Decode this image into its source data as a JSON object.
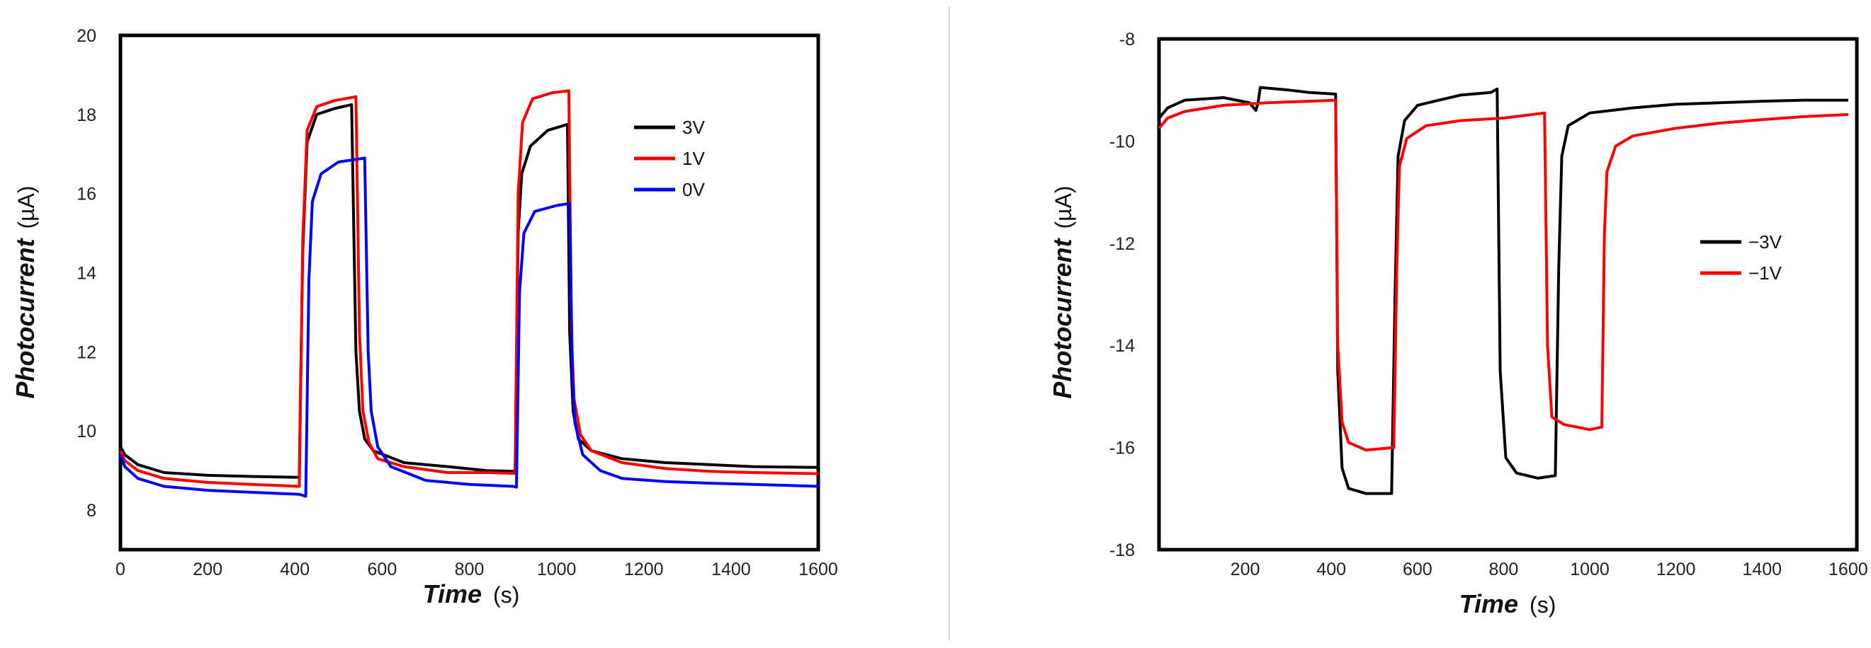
{
  "chart_data": [
    {
      "type": "line",
      "xlabel": "Time",
      "xlabel_unit": "(s)",
      "ylabel": "Photocurrent",
      "ylabel_unit": "(µA)",
      "xlim": [
        0,
        1600
      ],
      "ylim": [
        7,
        20
      ],
      "xticks": [
        0,
        200,
        400,
        600,
        800,
        1000,
        1200,
        1400,
        1600
      ],
      "yticks": [
        8,
        10,
        12,
        14,
        16,
        18,
        20
      ],
      "legend_position": "top-right",
      "series": [
        {
          "name": "3V",
          "color": "#000000",
          "points": [
            [
              0,
              9.6
            ],
            [
              10,
              9.4
            ],
            [
              40,
              9.15
            ],
            [
              100,
              8.95
            ],
            [
              200,
              8.88
            ],
            [
              300,
              8.85
            ],
            [
              410,
              8.83
            ],
            [
              418,
              14.5
            ],
            [
              428,
              17.3
            ],
            [
              450,
              18.0
            ],
            [
              490,
              18.15
            ],
            [
              530,
              18.25
            ],
            [
              540,
              12.0
            ],
            [
              548,
              10.5
            ],
            [
              560,
              9.8
            ],
            [
              580,
              9.5
            ],
            [
              650,
              9.2
            ],
            [
              750,
              9.1
            ],
            [
              840,
              9.0
            ],
            [
              905,
              8.98
            ],
            [
              912,
              15.0
            ],
            [
              920,
              16.5
            ],
            [
              940,
              17.2
            ],
            [
              980,
              17.6
            ],
            [
              1025,
              17.75
            ],
            [
              1030,
              12.5
            ],
            [
              1038,
              10.5
            ],
            [
              1050,
              9.8
            ],
            [
              1080,
              9.5
            ],
            [
              1150,
              9.3
            ],
            [
              1250,
              9.2
            ],
            [
              1350,
              9.15
            ],
            [
              1450,
              9.1
            ],
            [
              1600,
              9.08
            ]
          ]
        },
        {
          "name": "1V",
          "color": "#ff0000",
          "points": [
            [
              0,
              9.5
            ],
            [
              10,
              9.25
            ],
            [
              40,
              9.0
            ],
            [
              100,
              8.8
            ],
            [
              200,
              8.7
            ],
            [
              300,
              8.65
            ],
            [
              410,
              8.6
            ],
            [
              418,
              14.8
            ],
            [
              428,
              17.6
            ],
            [
              450,
              18.2
            ],
            [
              490,
              18.35
            ],
            [
              540,
              18.45
            ],
            [
              548,
              12.5
            ],
            [
              556,
              10.5
            ],
            [
              570,
              9.7
            ],
            [
              590,
              9.3
            ],
            [
              650,
              9.1
            ],
            [
              750,
              8.95
            ],
            [
              840,
              8.95
            ],
            [
              905,
              8.93
            ],
            [
              912,
              16.0
            ],
            [
              922,
              17.8
            ],
            [
              945,
              18.4
            ],
            [
              990,
              18.55
            ],
            [
              1028,
              18.6
            ],
            [
              1034,
              12.5
            ],
            [
              1040,
              10.8
            ],
            [
              1055,
              9.9
            ],
            [
              1080,
              9.5
            ],
            [
              1150,
              9.2
            ],
            [
              1250,
              9.05
            ],
            [
              1350,
              8.98
            ],
            [
              1450,
              8.95
            ],
            [
              1600,
              8.92
            ]
          ]
        },
        {
          "name": "0V",
          "color": "#0000ff",
          "points": [
            [
              0,
              9.4
            ],
            [
              10,
              9.1
            ],
            [
              40,
              8.8
            ],
            [
              100,
              8.6
            ],
            [
              200,
              8.5
            ],
            [
              300,
              8.45
            ],
            [
              410,
              8.4
            ],
            [
              425,
              8.35
            ],
            [
              432,
              13.8
            ],
            [
              440,
              15.8
            ],
            [
              460,
              16.5
            ],
            [
              500,
              16.8
            ],
            [
              560,
              16.9
            ],
            [
              568,
              12.0
            ],
            [
              575,
              10.5
            ],
            [
              590,
              9.6
            ],
            [
              620,
              9.1
            ],
            [
              700,
              8.75
            ],
            [
              800,
              8.65
            ],
            [
              900,
              8.6
            ],
            [
              908,
              8.58
            ],
            [
              915,
              13.5
            ],
            [
              925,
              15.0
            ],
            [
              950,
              15.55
            ],
            [
              1000,
              15.7
            ],
            [
              1030,
              15.75
            ],
            [
              1036,
              11.5
            ],
            [
              1042,
              10.2
            ],
            [
              1060,
              9.4
            ],
            [
              1100,
              9.0
            ],
            [
              1150,
              8.8
            ],
            [
              1250,
              8.72
            ],
            [
              1350,
              8.68
            ],
            [
              1450,
              8.65
            ],
            [
              1600,
              8.6
            ]
          ]
        }
      ]
    },
    {
      "type": "line",
      "xlabel": "Time",
      "xlabel_unit": "(s)",
      "ylabel": "Photocurrent",
      "ylabel_unit": "(µA)",
      "xlim": [
        0,
        1620
      ],
      "ylim": [
        -18,
        -8
      ],
      "xticks": [
        200,
        400,
        600,
        800,
        1000,
        1200,
        1400,
        1600
      ],
      "yticks": [
        -8,
        -10,
        -12,
        -14,
        -16,
        -18
      ],
      "legend_position": "right",
      "series": [
        {
          "name": "−3V",
          "color": "#000000",
          "points": [
            [
              0,
              -9.55
            ],
            [
              20,
              -9.35
            ],
            [
              60,
              -9.2
            ],
            [
              150,
              -9.15
            ],
            [
              210,
              -9.25
            ],
            [
              225,
              -9.4
            ],
            [
              230,
              -9.25
            ],
            [
              235,
              -8.95
            ],
            [
              300,
              -9.0
            ],
            [
              350,
              -9.05
            ],
            [
              410,
              -9.08
            ],
            [
              415,
              -14.5
            ],
            [
              425,
              -16.4
            ],
            [
              440,
              -16.8
            ],
            [
              480,
              -16.9
            ],
            [
              540,
              -16.9
            ],
            [
              548,
              -13.0
            ],
            [
              555,
              -10.3
            ],
            [
              570,
              -9.6
            ],
            [
              600,
              -9.3
            ],
            [
              650,
              -9.2
            ],
            [
              700,
              -9.1
            ],
            [
              770,
              -9.05
            ],
            [
              785,
              -8.98
            ],
            [
              792,
              -14.5
            ],
            [
              805,
              -16.2
            ],
            [
              830,
              -16.5
            ],
            [
              880,
              -16.6
            ],
            [
              920,
              -16.55
            ],
            [
              928,
              -12.5
            ],
            [
              935,
              -10.3
            ],
            [
              950,
              -9.7
            ],
            [
              1000,
              -9.45
            ],
            [
              1100,
              -9.35
            ],
            [
              1200,
              -9.28
            ],
            [
              1300,
              -9.25
            ],
            [
              1400,
              -9.22
            ],
            [
              1500,
              -9.2
            ],
            [
              1600,
              -9.2
            ]
          ]
        },
        {
          "name": "−1V",
          "color": "#ff0000",
          "points": [
            [
              0,
              -9.75
            ],
            [
              20,
              -9.55
            ],
            [
              60,
              -9.42
            ],
            [
              150,
              -9.3
            ],
            [
              250,
              -9.25
            ],
            [
              350,
              -9.22
            ],
            [
              410,
              -9.2
            ],
            [
              415,
              -14.0
            ],
            [
              425,
              -15.5
            ],
            [
              440,
              -15.9
            ],
            [
              480,
              -16.05
            ],
            [
              545,
              -16.0
            ],
            [
              552,
              -12.5
            ],
            [
              558,
              -10.5
            ],
            [
              575,
              -9.95
            ],
            [
              620,
              -9.7
            ],
            [
              700,
              -9.6
            ],
            [
              800,
              -9.55
            ],
            [
              895,
              -9.45
            ],
            [
              902,
              -14.0
            ],
            [
              912,
              -15.4
            ],
            [
              940,
              -15.55
            ],
            [
              1000,
              -15.65
            ],
            [
              1028,
              -15.6
            ],
            [
              1034,
              -11.8
            ],
            [
              1040,
              -10.6
            ],
            [
              1060,
              -10.1
            ],
            [
              1100,
              -9.9
            ],
            [
              1200,
              -9.75
            ],
            [
              1300,
              -9.65
            ],
            [
              1400,
              -9.58
            ],
            [
              1500,
              -9.52
            ],
            [
              1600,
              -9.48
            ]
          ]
        }
      ]
    }
  ]
}
